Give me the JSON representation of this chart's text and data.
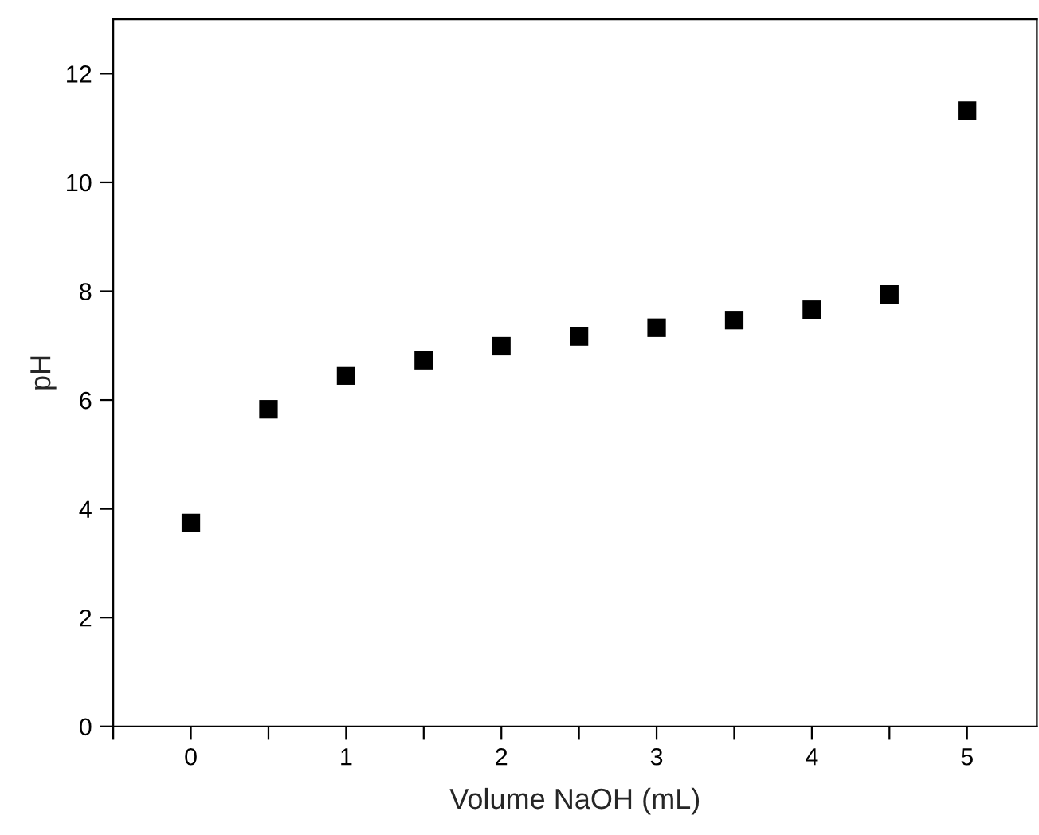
{
  "chart_data": {
    "type": "scatter",
    "xlabel": "Volume NaOH (mL)",
    "ylabel": "pH",
    "x": [
      0,
      0.5,
      1,
      1.5,
      2,
      2.5,
      3,
      3.5,
      4,
      4.5,
      5
    ],
    "series": [
      {
        "color": "#000000",
        "values": [
          3.74,
          5.83,
          6.45,
          6.73,
          6.99,
          7.17,
          7.33,
          7.47,
          7.66,
          7.94,
          11.32
        ]
      }
    ],
    "marker": "square",
    "grid": false,
    "legend": false,
    "xlim": [
      -0.5,
      5.45
    ],
    "ylim": [
      0,
      13
    ],
    "xticks": [
      {
        "value": -0.5,
        "label": null
      },
      0,
      {
        "value": 0.5,
        "label": null
      },
      1,
      {
        "value": 1.5,
        "label": null
      },
      2,
      {
        "value": 2.5,
        "label": null
      },
      3,
      {
        "value": 3.5,
        "label": null
      },
      4,
      {
        "value": 4.5,
        "label": null
      },
      5
    ],
    "yticks": [
      0,
      2,
      4,
      6,
      8,
      10,
      12
    ]
  }
}
